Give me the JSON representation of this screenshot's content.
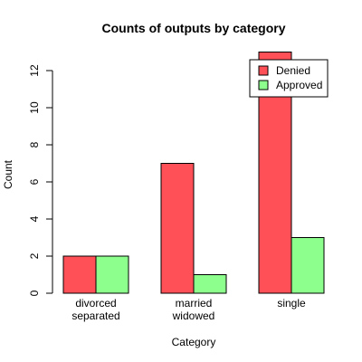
{
  "chart_data": {
    "type": "bar",
    "title": "Counts of outputs by category",
    "xlabel": "Category",
    "ylabel": "Count",
    "categories": [
      [
        "divorced",
        "separated"
      ],
      [
        "married",
        "widowed"
      ],
      [
        "single"
      ]
    ],
    "series": [
      {
        "name": "Denied",
        "values": [
          2,
          7,
          13
        ],
        "color": "#FF4F57"
      },
      {
        "name": "Approved",
        "values": [
          2,
          1,
          3
        ],
        "color": "#8CFF8C"
      }
    ],
    "y_ticks": [
      "0",
      "2",
      "4",
      "6",
      "8",
      "10",
      "12"
    ],
    "ylim": [
      0,
      13
    ],
    "grid": false,
    "legend_position": "top-right",
    "bar_mode": "grouped"
  }
}
